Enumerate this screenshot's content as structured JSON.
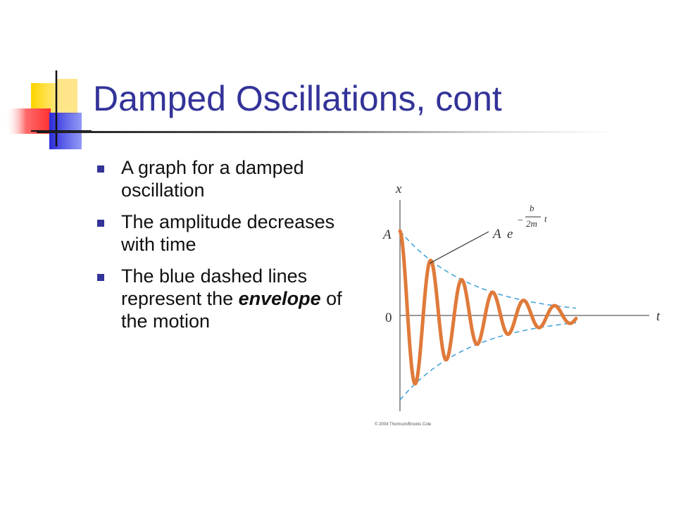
{
  "slide": {
    "title": "Damped Oscillations, cont",
    "bullets": [
      {
        "text": "A graph for a damped oscillation"
      },
      {
        "text": "The amplitude decreases with time"
      },
      {
        "pre": "The blue dashed lines represent the ",
        "em": "envelope",
        "post": " of the motion"
      }
    ]
  },
  "diagram": {
    "x_axis_label": "t",
    "y_axis_label": "x",
    "amplitude_label": "A",
    "origin_label": "0",
    "envelope_formula": {
      "coefficient": "A",
      "base": "e",
      "minus": "−",
      "numerator": "b",
      "denominator": "2m",
      "variable": "t"
    },
    "copyright": "© 2004 Thomson/Brooks Cole",
    "colors": {
      "curve": "#e07a3a",
      "envelope": "#3a9fd6",
      "axes": "#777777",
      "title": "#333399"
    }
  }
}
